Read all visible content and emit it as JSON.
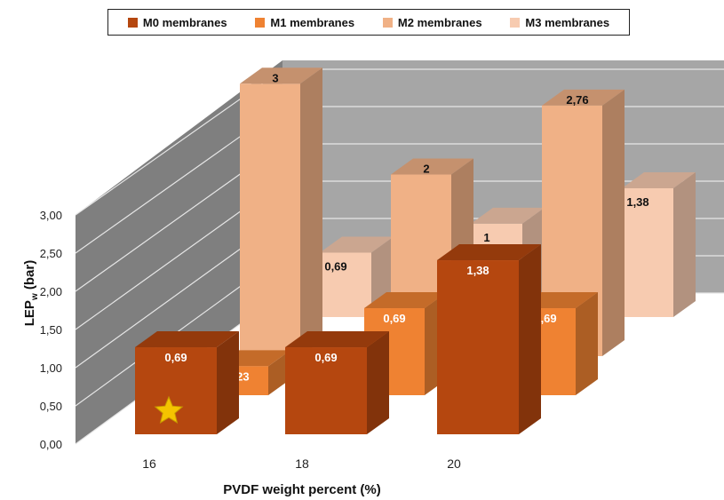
{
  "chart_data": {
    "type": "bar",
    "categories": [
      "16",
      "18",
      "20"
    ],
    "series": [
      {
        "name": "M0 membranes",
        "values": [
          0.69,
          0.69,
          1.38
        ],
        "labels": [
          "0,69",
          "0,69",
          "1,38"
        ],
        "color": "#b5470f"
      },
      {
        "name": "M1 membranes",
        "values": [
          0.23,
          0.69,
          0.69
        ],
        "labels": [
          "0,23",
          "0,69",
          "0,69"
        ],
        "color": "#ef8232"
      },
      {
        "name": "M2 membranes",
        "values": [
          3,
          2,
          2.76
        ],
        "labels": [
          "3",
          "2",
          "2,76"
        ],
        "color": "#f0b186"
      },
      {
        "name": "M3 membranes",
        "values": [
          0.69,
          1,
          1.38
        ],
        "labels": [
          "0,69",
          "1",
          "1,38"
        ],
        "color": "#f7cbb0"
      }
    ],
    "xlabel": "PVDF weight percent (%)",
    "ylabel_main": "LEP",
    "ylabel_sub": "w",
    "ylabel_unit": " (bar)",
    "yticks": [
      "0,00",
      "0,50",
      "1,00",
      "1,50",
      "2,00",
      "2,50",
      "3,00"
    ],
    "ylim": [
      0,
      3
    ],
    "star_markers": [
      "M0 membranes @ 16",
      "M1 membranes @ 16"
    ],
    "wall_color": "#a6a6a6",
    "side_wall_color": "#7f7f7f",
    "gridlines": true
  }
}
